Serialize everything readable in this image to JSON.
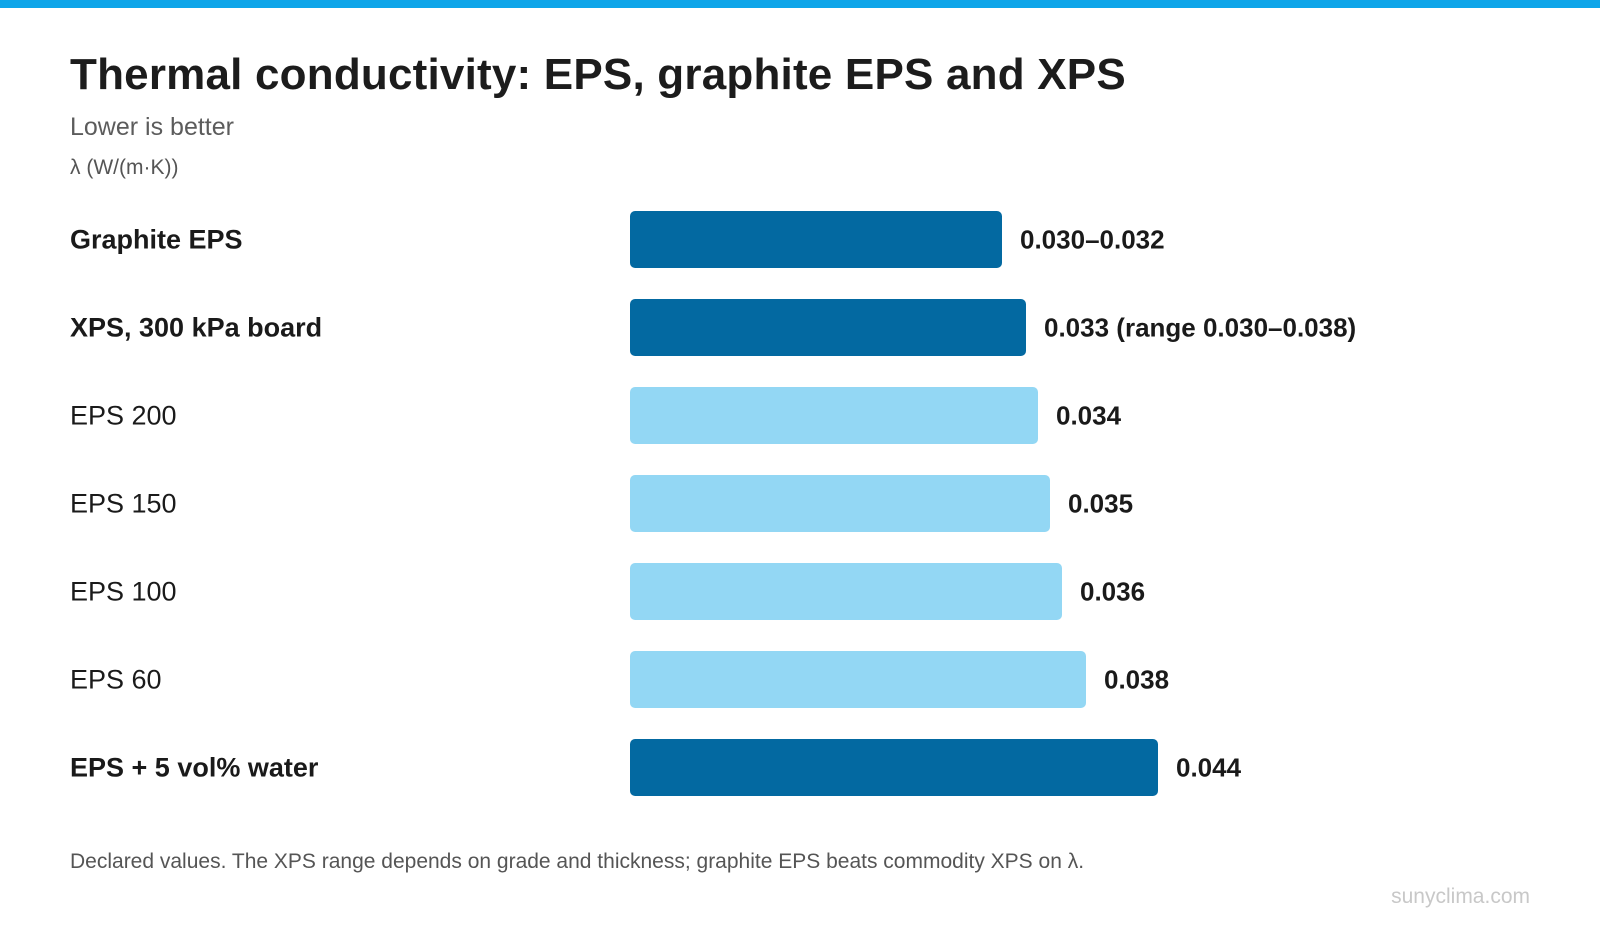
{
  "header": {
    "title": "Thermal conductivity: EPS, graphite EPS and XPS",
    "subtitle": "Lower is better",
    "unit_label": "λ (W/(m·K))"
  },
  "footer": {
    "note": "Declared values. The XPS range depends on grade and thickness; graphite EPS beats commodity XPS on λ.",
    "source": "sunyclima.com"
  },
  "colors": {
    "accent_bar": "#0ea5e9",
    "highlight": "#0369a1",
    "standard": "#93d7f4"
  },
  "chart_data": {
    "type": "bar",
    "orientation": "horizontal",
    "title": "Thermal conductivity: EPS, graphite EPS and XPS",
    "subtitle": "Lower is better",
    "xlabel": "λ (W/(m·K))",
    "categories": [
      "Graphite EPS",
      "XPS, 300 kPa board",
      "EPS 200",
      "EPS 150",
      "EPS 100",
      "EPS 60",
      "EPS + 5 vol% water"
    ],
    "values": [
      0.031,
      0.033,
      0.034,
      0.035,
      0.036,
      0.038,
      0.044
    ],
    "data_labels": [
      "0.030–0.032",
      "0.033 (range 0.030–0.038)",
      "0.034",
      "0.035",
      "0.036",
      "0.038",
      "0.044"
    ],
    "highlighted": [
      true,
      true,
      false,
      false,
      false,
      false,
      true
    ],
    "grid": false,
    "legend": "none"
  }
}
